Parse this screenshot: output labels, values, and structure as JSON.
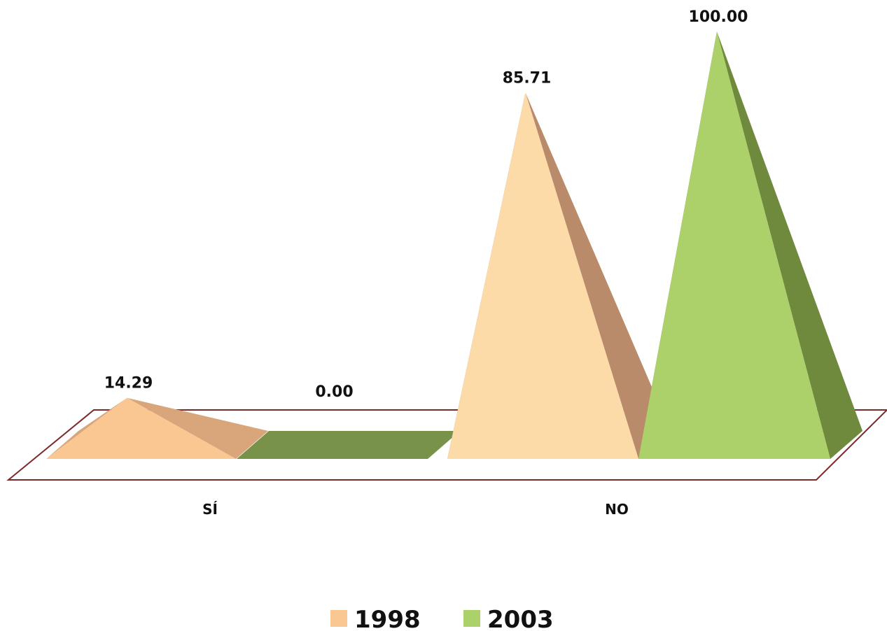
{
  "chart_data": {
    "type": "bar",
    "style": "3d-pyramid",
    "categories": [
      "SÍ",
      "NO"
    ],
    "series": [
      {
        "name": "1998",
        "values": [
          14.29,
          85.71
        ],
        "labels": [
          "14.29",
          "85.71"
        ],
        "colors": {
          "front": "#FAC793",
          "side": "#D9A67B",
          "front_alt": "#FCDBA8",
          "side_alt": "#B98B6A"
        }
      },
      {
        "name": "2003",
        "values": [
          0.0,
          100.0
        ],
        "labels": [
          "0.00",
          "100.00"
        ],
        "colors": {
          "front": "#ADD16A",
          "side": "#6F8A3D",
          "flat": "#78924A"
        }
      }
    ],
    "ylim": [
      0,
      100
    ],
    "grid": false,
    "legend": "bottom",
    "floor_border_color": "#7B2A2A"
  }
}
